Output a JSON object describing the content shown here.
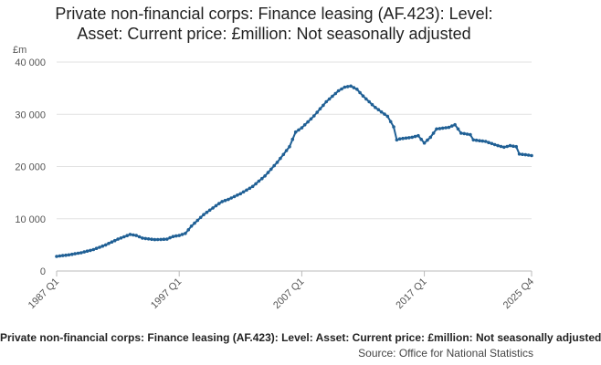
{
  "chart_data": {
    "type": "line",
    "title_lines": [
      "Private non-financial corps: Finance leasing (AF.423): Level:",
      "Asset: Current price: £million: Not seasonally adjusted"
    ],
    "unit_label": "£m",
    "xlabel": "",
    "ylabel": "£m",
    "ylim": [
      0,
      40000
    ],
    "y_ticks": [
      0,
      10000,
      20000,
      30000,
      40000
    ],
    "y_tick_labels": [
      "0",
      "10 000",
      "20 000",
      "30 000",
      "40 000"
    ],
    "x_tick_labels": [
      "1987 Q1",
      "1997 Q1",
      "2007 Q1",
      "2017 Q1",
      "2025 Q4"
    ],
    "grid": true,
    "legend": "none",
    "line_color": "#206095",
    "keypoints": [
      [
        "1987 Q1",
        2800
      ],
      [
        "1988 Q1",
        3100
      ],
      [
        "1989 Q1",
        3500
      ],
      [
        "1990 Q1",
        4100
      ],
      [
        "1991 Q1",
        5000
      ],
      [
        "1992 Q1",
        6100
      ],
      [
        "1993 Q1",
        7000
      ],
      [
        "1993 Q3",
        6800
      ],
      [
        "1994 Q1",
        6300
      ],
      [
        "1995 Q1",
        6000
      ],
      [
        "1996 Q1",
        6100
      ],
      [
        "1996 Q3",
        6600
      ],
      [
        "1997 Q1",
        6800
      ],
      [
        "1997 Q3",
        7200
      ],
      [
        "1998 Q1",
        8600
      ],
      [
        "1999 Q1",
        10800
      ],
      [
        "2000 Q1",
        12500
      ],
      [
        "2000 Q3",
        13300
      ],
      [
        "2001 Q1",
        13700
      ],
      [
        "2002 Q1",
        14800
      ],
      [
        "2003 Q1",
        16200
      ],
      [
        "2004 Q1",
        18200
      ],
      [
        "2005 Q1",
        20800
      ],
      [
        "2006 Q1",
        23800
      ],
      [
        "2006 Q3",
        26600
      ],
      [
        "2007 Q1",
        27400
      ],
      [
        "2008 Q1",
        29700
      ],
      [
        "2009 Q1",
        32400
      ],
      [
        "2010 Q1",
        34500
      ],
      [
        "2010 Q3",
        35200
      ],
      [
        "2011 Q1",
        35400
      ],
      [
        "2011 Q3",
        34800
      ],
      [
        "2012 Q1",
        33500
      ],
      [
        "2013 Q1",
        31300
      ],
      [
        "2014 Q1",
        29600
      ],
      [
        "2014 Q3",
        27600
      ],
      [
        "2014 Q4",
        25100
      ],
      [
        "2015 Q1",
        25300
      ],
      [
        "2016 Q1",
        25600
      ],
      [
        "2016 Q3",
        25900
      ],
      [
        "2017 Q1",
        24500
      ],
      [
        "2017 Q3",
        25600
      ],
      [
        "2018 Q1",
        27200
      ],
      [
        "2019 Q1",
        27500
      ],
      [
        "2019 Q3",
        28000
      ],
      [
        "2020 Q1",
        26400
      ],
      [
        "2020 Q4",
        26100
      ],
      [
        "2021 Q1",
        25100
      ],
      [
        "2022 Q1",
        24800
      ],
      [
        "2023 Q1",
        24000
      ],
      [
        "2023 Q3",
        23700
      ],
      [
        "2024 Q1",
        24000
      ],
      [
        "2024 Q3",
        23800
      ],
      [
        "2024 Q4",
        22400
      ],
      [
        "2025 Q4",
        22100
      ]
    ]
  },
  "footer": {
    "title": "Private non-financial corps: Finance leasing (AF.423): Level: Asset: Current price: £million: Not seasonally adjusted",
    "source": "Source: Office for National Statistics"
  }
}
